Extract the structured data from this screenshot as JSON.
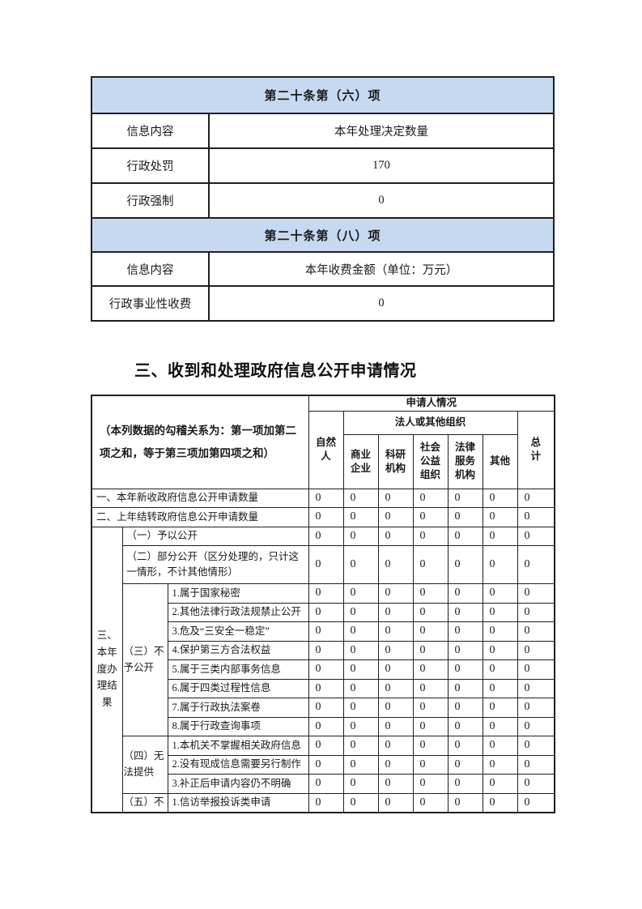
{
  "colors": {
    "header_fill_blue": "#c6d9f1",
    "border": "#1f1f1f",
    "text": "#1a1a1a",
    "page_background": "#ffffff"
  },
  "table1": {
    "sections": [
      {
        "header": "第二十条第（六）项",
        "rows": [
          {
            "label": "信息内容",
            "value": "本年处理决定数量"
          },
          {
            "label": "行政处罚",
            "value": "170"
          },
          {
            "label": "行政强制",
            "value": "0"
          }
        ]
      },
      {
        "header": "第二十条第（八）项",
        "rows": [
          {
            "label": "信息内容",
            "value": "本年收费金额（单位：万元）"
          },
          {
            "label": "行政事业性收费",
            "value": "0"
          }
        ]
      }
    ]
  },
  "section_heading": "三、收到和处理政府信息公开申请情况",
  "table2": {
    "note": "（本列数据的勾稽关系为：第一项加第二项之和，等于第三项加第四项之和）",
    "header": {
      "applicant": "申请人情况",
      "natural_person": "自然人",
      "legal_org": "法人或其他组织",
      "org_types": [
        "商业企业",
        "科研机构",
        "社会公益组织",
        "法律服务机构",
        "其他"
      ],
      "total": "总计"
    },
    "stage": {
      "label": "三、本年度办理结果",
      "span": 14
    },
    "rows": [
      {
        "label": "一、本年新收政府信息公开申请数量",
        "type": "full",
        "values": [
          "0",
          "0",
          "0",
          "0",
          "0",
          "0",
          "0"
        ]
      },
      {
        "label": "二、上年结转政府信息公开申请数量",
        "type": "full",
        "values": [
          "0",
          "0",
          "0",
          "0",
          "0",
          "0",
          "0"
        ]
      },
      {
        "label": "（一）予以公开",
        "type": "sub",
        "values": [
          "0",
          "0",
          "0",
          "0",
          "0",
          "0",
          "0"
        ]
      },
      {
        "label": "（二）部分公开（区分处理的，只计这一情形，不计其他情形）",
        "type": "sub",
        "tall": true,
        "values": [
          "0",
          "0",
          "0",
          "0",
          "0",
          "0",
          "0"
        ]
      },
      {
        "group": "（三）不予公开",
        "group_span": 8,
        "label": "1.属于国家秘密",
        "type": "item",
        "values": [
          "0",
          "0",
          "0",
          "0",
          "0",
          "0",
          "0"
        ]
      },
      {
        "label": "2.其他法律行政法规禁止公开",
        "type": "item",
        "values": [
          "0",
          "0",
          "0",
          "0",
          "0",
          "0",
          "0"
        ]
      },
      {
        "label": "3.危及“三安全一稳定”",
        "type": "item",
        "values": [
          "0",
          "0",
          "0",
          "0",
          "0",
          "0",
          "0"
        ]
      },
      {
        "label": "4.保护第三方合法权益",
        "type": "item",
        "values": [
          "0",
          "0",
          "0",
          "0",
          "0",
          "0",
          "0"
        ]
      },
      {
        "label": "5.属于三类内部事务信息",
        "type": "item",
        "values": [
          "0",
          "0",
          "0",
          "0",
          "0",
          "0",
          "0"
        ]
      },
      {
        "label": "6.属于四类过程性信息",
        "type": "item",
        "values": [
          "0",
          "0",
          "0",
          "0",
          "0",
          "0",
          "0"
        ]
      },
      {
        "label": "7.属于行政执法案卷",
        "type": "item",
        "values": [
          "0",
          "0",
          "0",
          "0",
          "0",
          "0",
          "0"
        ]
      },
      {
        "label": "8.属于行政查询事项",
        "type": "item",
        "values": [
          "0",
          "0",
          "0",
          "0",
          "0",
          "0",
          "0"
        ]
      },
      {
        "group": "（四）无法提供",
        "group_span": 3,
        "label": "1.本机关不掌握相关政府信息",
        "type": "item",
        "values": [
          "0",
          "0",
          "0",
          "0",
          "0",
          "0",
          "0"
        ]
      },
      {
        "label": "2.没有现成信息需要另行制作",
        "type": "item",
        "values": [
          "0",
          "0",
          "0",
          "0",
          "0",
          "0",
          "0"
        ]
      },
      {
        "label": "3.补正后申请内容仍不明确",
        "type": "item",
        "values": [
          "0",
          "0",
          "0",
          "0",
          "0",
          "0",
          "0"
        ]
      },
      {
        "group": "（五）不",
        "group_span": 1,
        "label": "1.信访举报投诉类申请",
        "type": "item",
        "values": [
          "0",
          "0",
          "0",
          "0",
          "0",
          "0",
          "0"
        ]
      }
    ]
  }
}
